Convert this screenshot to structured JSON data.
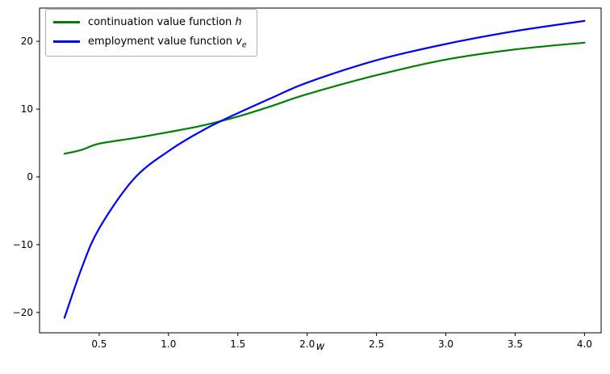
{
  "figure": {
    "xlabel": "w",
    "background": "#ffffff",
    "axis_color": "#000000",
    "legend": {
      "position": "upper left",
      "rows": [
        {
          "text": "continuation value function ",
          "math": "h",
          "sub": "",
          "color": "#008000"
        },
        {
          "text": "employment value function ",
          "math": "v",
          "sub": "e",
          "color": "#0000ff"
        }
      ]
    }
  },
  "chart_data": {
    "type": "line",
    "title": "",
    "xlabel": "w",
    "ylabel": "",
    "grid": false,
    "legend_position": "upper left",
    "xlim": [
      0.07,
      4.12
    ],
    "ylim": [
      -23.0,
      24.9
    ],
    "xticks": {
      "values": [
        0.5,
        1.0,
        1.5,
        2.0,
        2.5,
        3.0,
        3.5,
        4.0
      ],
      "labels": [
        "0.5",
        "1.0",
        "1.5",
        "2.0",
        "2.5",
        "3.0",
        "3.5",
        "4.0"
      ]
    },
    "yticks": {
      "values": [
        -20,
        -10,
        0,
        10,
        20
      ],
      "labels": [
        "−20",
        "−10",
        "0",
        "10",
        "20"
      ]
    },
    "x": [
      0.25,
      0.375,
      0.5,
      0.75,
      1.0,
      1.25,
      1.5,
      1.75,
      2.0,
      2.5,
      3.0,
      3.5,
      4.0
    ],
    "series": [
      {
        "name": "continuation value function h",
        "color": "#008000",
        "linewidth": 2.2,
        "values": [
          3.4,
          4.0,
          4.9,
          5.7,
          6.6,
          7.6,
          8.9,
          10.5,
          12.2,
          15.0,
          17.3,
          18.8,
          19.8
        ]
      },
      {
        "name": "employment value function v_e",
        "color": "#0000ff",
        "linewidth": 2.2,
        "values": [
          -20.8,
          -13.4,
          -7.6,
          -0.3,
          3.8,
          6.9,
          9.4,
          11.7,
          13.9,
          17.2,
          19.6,
          21.5,
          23.0
        ]
      }
    ],
    "annotations": {
      "crossing_point": {
        "w": 1.4,
        "value": 8.3
      }
    }
  }
}
